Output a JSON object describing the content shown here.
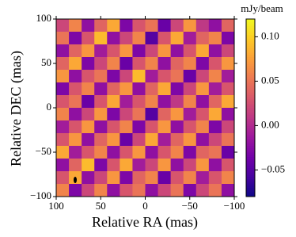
{
  "chart_data": {
    "type": "heatmap",
    "x_label": "Relative RA (mas)",
    "y_label": "Relative DEC (mas)",
    "colorbar_label": "mJy/beam",
    "colormap": "plasma",
    "xlim": [
      100,
      -100
    ],
    "ylim": [
      -100,
      100
    ],
    "xticks": [
      100,
      50,
      0,
      {
        "value": -50,
        "label": "−50"
      },
      {
        "value": -100,
        "label": "−100"
      }
    ],
    "yticks": [
      100,
      50,
      0,
      {
        "value": -50,
        "label": "−50"
      },
      {
        "value": -100,
        "label": "−100"
      }
    ],
    "clim": [
      -0.08,
      0.12
    ],
    "cticks": [
      {
        "value": 0.1,
        "label": "0.10"
      },
      {
        "value": 0.05,
        "label": "0.05"
      },
      {
        "value": 0,
        "label": "0.00"
      },
      {
        "value": -0.05,
        "label": "−0.05"
      }
    ],
    "z": [
      [
        0.02,
        0.06,
        -0.02,
        0.04,
        0.08,
        -0.03,
        0.03,
        0.05,
        -0.04,
        0.02,
        0.07,
        0.01,
        -0.02,
        0.04
      ],
      [
        0.05,
        -0.03,
        0.03,
        0.09,
        -0.02,
        0.02,
        0.06,
        -0.05,
        0.03,
        0.08,
        -0.01,
        0.04,
        0.06,
        -0.03
      ],
      [
        -0.02,
        0.04,
        0.07,
        -0.01,
        0.03,
        0.07,
        -0.03,
        0.02,
        0.07,
        -0.02,
        0.03,
        0.08,
        -0.02,
        0.02
      ],
      [
        0.04,
        0.08,
        -0.03,
        0.02,
        0.06,
        -0.04,
        0.03,
        0.06,
        -0.02,
        0.04,
        0.06,
        -0.03,
        0.03,
        0.07
      ],
      [
        0.07,
        -0.02,
        0.03,
        0.05,
        -0.03,
        0.02,
        0.09,
        -0.01,
        0.03,
        0.05,
        -0.04,
        0.02,
        0.06,
        -0.01
      ],
      [
        -0.03,
        0.03,
        0.06,
        -0.02,
        0.04,
        0.07,
        -0.02,
        0.04,
        0.08,
        -0.03,
        0.02,
        0.07,
        -0.01,
        0.03
      ],
      [
        0.03,
        0.05,
        -0.04,
        0.03,
        0.08,
        -0.01,
        0.03,
        0.06,
        -0.02,
        0.01,
        0.06,
        -0.02,
        0.04,
        0.08
      ],
      [
        0.06,
        -0.02,
        0.02,
        0.07,
        -0.03,
        0.02,
        0.05,
        -0.05,
        0.04,
        0.07,
        -0.01,
        0.03,
        0.08,
        -0.02
      ],
      [
        -0.01,
        0.03,
        0.07,
        -0.02,
        0.03,
        0.06,
        -0.03,
        0.03,
        0.07,
        -0.02,
        0.03,
        0.06,
        -0.03,
        0.02
      ],
      [
        0.03,
        0.07,
        -0.02,
        0.04,
        0.07,
        -0.04,
        0.02,
        0.08,
        -0.01,
        0.04,
        0.07,
        -0.02,
        0.02,
        0.05
      ],
      [
        0.08,
        -0.01,
        0.03,
        0.06,
        -0.02,
        0.03,
        0.07,
        -0.02,
        0.03,
        0.06,
        -0.03,
        0.04,
        0.05,
        -0.04
      ],
      [
        -0.02,
        0.04,
        0.09,
        -0.03,
        0.03,
        0.08,
        -0.01,
        0.02,
        0.07,
        -0.02,
        0.02,
        0.07,
        -0.02,
        0.03
      ],
      [
        0.03,
        0.08,
        -0.02,
        0.02,
        0.07,
        -0.03,
        0.04,
        0.06,
        -0.04,
        0.03,
        0.06,
        -0.01,
        0.03,
        0.06
      ],
      [
        0.06,
        -0.03,
        0.02,
        0.06,
        -0.02,
        0.03,
        0.05,
        -0.02,
        0.02,
        0.05,
        -0.03,
        0.02,
        0.05,
        -0.02
      ]
    ]
  }
}
